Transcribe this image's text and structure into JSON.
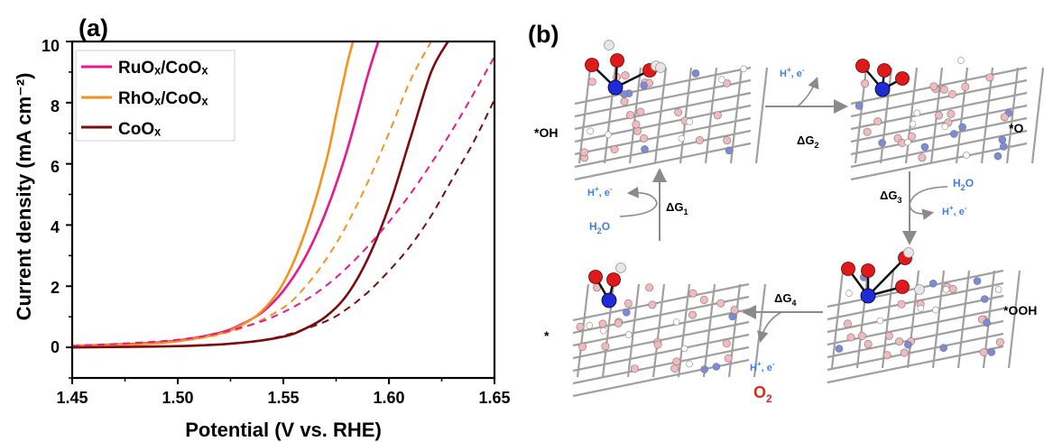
{
  "panel_a": {
    "label": "(a)",
    "chart_data": {
      "type": "line",
      "xlabel": "Potential (V vs. RHE)",
      "ylabel": "Current density (mA cm⁻²)",
      "xlim": [
        1.45,
        1.65
      ],
      "ylim": [
        -1,
        10
      ],
      "x_ticks": [
        "1.45",
        "1.50",
        "1.55",
        "1.60",
        "1.65"
      ],
      "y_ticks": [
        "0",
        "2",
        "4",
        "6",
        "8",
        "10"
      ],
      "grid": false,
      "legend_position": "top-left",
      "series": [
        {
          "name": "RuOₓ/CoOₓ",
          "color": "#e8178a",
          "style": "solid",
          "x": [
            1.45,
            1.48,
            1.5,
            1.52,
            1.53,
            1.54,
            1.55,
            1.56,
            1.57,
            1.58,
            1.59,
            1.595
          ],
          "y": [
            0.05,
            0.12,
            0.22,
            0.48,
            0.75,
            1.15,
            1.85,
            2.9,
            4.4,
            6.4,
            8.9,
            10
          ]
        },
        {
          "name": "RhOₓ/CoOₓ",
          "color": "#f5921e",
          "style": "solid",
          "x": [
            1.45,
            1.48,
            1.5,
            1.52,
            1.53,
            1.54,
            1.55,
            1.56,
            1.57,
            1.575,
            1.58,
            1.583
          ],
          "y": [
            0.05,
            0.1,
            0.2,
            0.45,
            0.72,
            1.2,
            2.1,
            3.7,
            6.0,
            7.6,
            9.2,
            10
          ]
        },
        {
          "name": "CoOₓ",
          "color": "#7a0c0c",
          "style": "solid",
          "x": [
            1.45,
            1.5,
            1.53,
            1.55,
            1.56,
            1.57,
            1.58,
            1.59,
            1.6,
            1.61,
            1.62,
            1.628
          ],
          "y": [
            0.0,
            0.04,
            0.15,
            0.35,
            0.6,
            1.0,
            1.7,
            2.9,
            4.6,
            6.8,
            9.0,
            10
          ]
        },
        {
          "name": "",
          "color": "#f5921e",
          "style": "dashed",
          "x": [
            1.45,
            1.5,
            1.53,
            1.55,
            1.56,
            1.57,
            1.58,
            1.59,
            1.6,
            1.61,
            1.62
          ],
          "y": [
            0.04,
            0.2,
            0.62,
            1.3,
            1.95,
            2.85,
            4.0,
            5.4,
            7.0,
            8.7,
            10
          ]
        },
        {
          "name": "",
          "color": "#e8178a",
          "style": "dashed",
          "x": [
            1.45,
            1.5,
            1.53,
            1.55,
            1.57,
            1.59,
            1.61,
            1.63,
            1.65
          ],
          "y": [
            0.04,
            0.25,
            0.65,
            1.15,
            2.0,
            3.3,
            5.0,
            7.1,
            9.5
          ]
        },
        {
          "name": "",
          "color": "#7a0c0c",
          "style": "dashed",
          "x": [
            1.45,
            1.5,
            1.53,
            1.55,
            1.57,
            1.58,
            1.59,
            1.6,
            1.61,
            1.62,
            1.63,
            1.64,
            1.65
          ],
          "y": [
            0.0,
            0.04,
            0.15,
            0.38,
            0.85,
            1.25,
            1.8,
            2.5,
            3.3,
            4.3,
            5.5,
            6.7,
            8.1
          ]
        }
      ]
    }
  },
  "panel_b": {
    "label": "(b)",
    "states": {
      "oh": "*OH",
      "o": "*O",
      "ooh": "*OOH",
      "star": "*"
    },
    "steps": {
      "g1": {
        "dg": "ΔG",
        "sub": "1"
      },
      "g2": {
        "dg": "ΔG",
        "sub": "2"
      },
      "g3": {
        "dg": "ΔG",
        "sub": "3"
      },
      "g4": {
        "dg": "ΔG",
        "sub": "4"
      }
    },
    "species": {
      "hplus_e": {
        "h": "H",
        "plus": "+",
        "sep": ", e",
        "minus": "-"
      },
      "h2o": {
        "h": "H",
        "two": "2",
        "o": "O"
      },
      "o2": {
        "o": "O",
        "two": "2"
      }
    },
    "colors": {
      "species_blue": "#3d7eea",
      "o2_red": "#e0251b",
      "arrow_gray": "#8a8a8a",
      "co_atom": "#1f2bd6",
      "o_atom": "#e01a1a",
      "h_atom": "#e6e6e6",
      "lattice_pink": "#f4b8bd",
      "lattice_blue": "#7c8bd9",
      "bond_gray": "#a0a0a0"
    }
  }
}
